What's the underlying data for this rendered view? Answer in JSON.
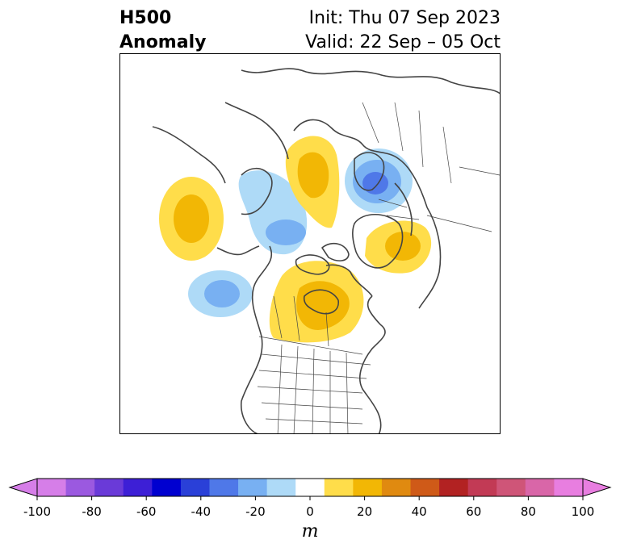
{
  "title": {
    "left_line1": "H500",
    "left_line2": "Anomaly",
    "right_line1": "Init: Thu 07 Sep 2023",
    "right_line2": "Valid: 22 Sep – 05 Oct"
  },
  "map": {
    "projection": "polar stereographic (North America / Arctic)",
    "features": [
      "coastlines",
      "country borders",
      "US state borders"
    ],
    "anomalies": [
      {
        "name": "north-pacific-ridge",
        "sign": "positive",
        "peak_m": 30
      },
      {
        "name": "alaska-trough",
        "sign": "negative",
        "peak_m": -30
      },
      {
        "name": "gulf-of-alaska-trough",
        "sign": "negative",
        "peak_m": -30
      },
      {
        "name": "canada-ridge",
        "sign": "positive",
        "peak_m": 30
      },
      {
        "name": "siberia-ridge",
        "sign": "positive",
        "peak_m": 30
      },
      {
        "name": "scandinavia-trough",
        "sign": "negative",
        "peak_m": -50
      },
      {
        "name": "greenland-ridge",
        "sign": "positive",
        "peak_m": 30
      }
    ]
  },
  "colorbar": {
    "unit": "m",
    "ticks": [
      "-100",
      "-80",
      "-60",
      "-40",
      "-20",
      "0",
      "20",
      "40",
      "60",
      "80",
      "100"
    ],
    "levels": [
      -100,
      -90,
      -80,
      -70,
      -60,
      -50,
      -40,
      -30,
      -20,
      -10,
      10,
      20,
      30,
      40,
      50,
      60,
      70,
      80,
      90,
      100
    ],
    "colors": [
      "#d67ee8",
      "#9b59e0",
      "#6a3ad8",
      "#3d1fd6",
      "#0000d0",
      "#2a40d8",
      "#4f78e8",
      "#78b0f2",
      "#aedaf7",
      "#ffffff",
      "#ffdd4a",
      "#f2b705",
      "#e08a10",
      "#cf5a18",
      "#b22222",
      "#c23a55",
      "#cf5578",
      "#d966a8",
      "#e87ee0"
    ]
  }
}
